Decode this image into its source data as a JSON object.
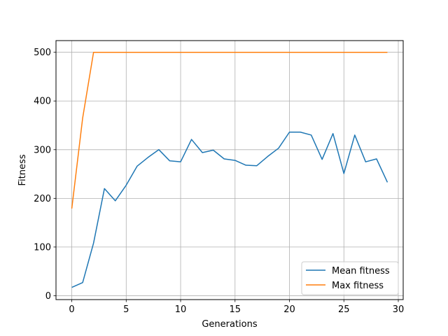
{
  "chart_data": {
    "type": "line",
    "title": "",
    "xlabel": "Generations",
    "ylabel": "Fitness",
    "xlim": [
      -1.45,
      30.45
    ],
    "ylim": [
      -8,
      524
    ],
    "xticks": [
      0,
      5,
      10,
      15,
      20,
      25,
      30
    ],
    "yticks": [
      0,
      100,
      200,
      300,
      400,
      500
    ],
    "xtick_labels": [
      "0",
      "5",
      "10",
      "15",
      "20",
      "25",
      "30"
    ],
    "ytick_labels": [
      "0",
      "100",
      "200",
      "300",
      "400",
      "500"
    ],
    "grid": true,
    "legend_position": "lower-right",
    "x": [
      0,
      1,
      2,
      3,
      4,
      5,
      6,
      7,
      8,
      9,
      10,
      11,
      12,
      13,
      14,
      15,
      16,
      17,
      18,
      19,
      20,
      21,
      22,
      23,
      24,
      25,
      26,
      27,
      28,
      29
    ],
    "series": [
      {
        "name": "Mean fitness",
        "color": "#1f77b4",
        "values": [
          17,
          27,
          108,
          220,
          195,
          227,
          266,
          284,
          300,
          277,
          275,
          321,
          294,
          299,
          281,
          278,
          268,
          267,
          286,
          303,
          336,
          336,
          330,
          280,
          333,
          251,
          330,
          275,
          281,
          233
        ]
      },
      {
        "name": "Max fitness",
        "color": "#ff7f0e",
        "values": [
          179,
          365,
          500,
          500,
          500,
          500,
          500,
          500,
          500,
          500,
          500,
          500,
          500,
          500,
          500,
          500,
          500,
          500,
          500,
          500,
          500,
          500,
          500,
          500,
          500,
          500,
          500,
          500,
          500,
          500
        ]
      }
    ]
  }
}
